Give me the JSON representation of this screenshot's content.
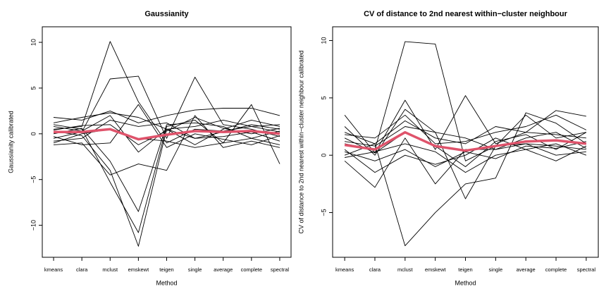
{
  "chart_data": [
    {
      "type": "line",
      "title": "Gaussianity",
      "xlabel": "Method",
      "ylabel": "Gaussianity calibrated",
      "categories": [
        "kmeans",
        "clara",
        "mclust",
        "emskewt",
        "teigen",
        "single",
        "average",
        "complete",
        "spectral"
      ],
      "ylim": [
        -13.5,
        11.7
      ],
      "yticks": [
        {
          "value": -10,
          "label": "−10"
        },
        {
          "value": -5,
          "label": "−5"
        },
        0,
        5,
        10
      ],
      "series": [
        {
          "color": "#000000",
          "values": [
            0.5,
            0.8,
            10.1,
            3.5,
            -1.0,
            0.5,
            0.3,
            0.8,
            0.2
          ]
        },
        {
          "color": "#000000",
          "values": [
            -0.5,
            0.2,
            6.0,
            6.3,
            -0.5,
            6.2,
            1.0,
            0.5,
            -0.3
          ]
        },
        {
          "color": "#000000",
          "values": [
            0.3,
            -0.2,
            -4.0,
            -12.3,
            0.5,
            -0.5,
            0.2,
            1.0,
            0.5
          ]
        },
        {
          "color": "#000000",
          "values": [
            1.0,
            0.5,
            -5.3,
            -10.8,
            0.8,
            1.5,
            -1.0,
            3.2,
            -3.3
          ]
        },
        {
          "color": "#000000",
          "values": [
            0.0,
            0.6,
            -3.0,
            -8.5,
            1.0,
            1.2,
            0.8,
            -0.5,
            0.3
          ]
        },
        {
          "color": "#000000",
          "values": [
            1.8,
            1.5,
            2.5,
            1.2,
            2.0,
            2.6,
            2.8,
            2.8,
            2.0
          ]
        },
        {
          "color": "#000000",
          "values": [
            -1.2,
            -1.0,
            -4.5,
            -3.3,
            -4.0,
            2.0,
            -1.5,
            -0.8,
            -1.5
          ]
        },
        {
          "color": "#000000",
          "values": [
            0.8,
            0.3,
            2.0,
            -2.0,
            0.5,
            -1.2,
            0.5,
            1.5,
            0.8
          ]
        },
        {
          "color": "#000000",
          "values": [
            -0.8,
            -0.5,
            1.5,
            0.8,
            1.2,
            -0.5,
            -0.3,
            0.2,
            -0.8
          ]
        },
        {
          "color": "#000000",
          "values": [
            1.2,
            1.8,
            2.3,
            1.8,
            0.5,
            0.8,
            1.5,
            0.8,
            1.0
          ]
        },
        {
          "color": "#000000",
          "values": [
            -0.3,
            -1.2,
            -1.0,
            3.2,
            -1.5,
            0.0,
            -0.6,
            -1.2,
            -0.2
          ]
        },
        {
          "color": "#000000",
          "values": [
            0.4,
            0.9,
            1.0,
            -1.2,
            0.3,
            1.8,
            0.6,
            0.0,
            0.6
          ]
        },
        {
          "color": "#000000",
          "values": [
            -1.0,
            0.0,
            0.5,
            -0.5,
            -0.8,
            -1.5,
            -1.0,
            -0.5,
            -1.2
          ]
        },
        {
          "color": "#df536b",
          "linewidth": 3.5,
          "values": [
            0.2,
            0.2,
            0.5,
            -0.6,
            -0.1,
            0.3,
            0.2,
            0.3,
            0.0
          ]
        }
      ]
    },
    {
      "type": "line",
      "title": "CV of distance to 2nd nearest within−cluster neighbour",
      "xlabel": "Method",
      "ylabel": "CV of distance to 2nd nearest within−cluster neighbour calibrated",
      "categories": [
        "kmeans",
        "clara",
        "mclust",
        "emskewt",
        "teigen",
        "single",
        "average",
        "complete",
        "spectral"
      ],
      "ylim": [
        -8.9,
        11.2
      ],
      "yticks": [
        {
          "value": -5,
          "label": "−5"
        },
        0,
        5,
        10
      ],
      "series": [
        {
          "color": "#000000",
          "values": [
            1.0,
            0.5,
            9.9,
            9.7,
            -0.5,
            0.8,
            1.0,
            0.8,
            0.5
          ]
        },
        {
          "color": "#000000",
          "values": [
            0.0,
            1.0,
            -7.9,
            -5.0,
            -2.5,
            -2.0,
            3.7,
            2.8,
            1.0
          ]
        },
        {
          "color": "#000000",
          "values": [
            3.5,
            0.2,
            4.8,
            0.5,
            5.2,
            1.0,
            2.0,
            3.9,
            3.4
          ]
        },
        {
          "color": "#000000",
          "values": [
            -0.5,
            -2.8,
            1.5,
            -2.5,
            0.5,
            0.5,
            1.0,
            0.0,
            0.3
          ]
        },
        {
          "color": "#000000",
          "values": [
            2.5,
            0.0,
            4.0,
            2.0,
            -3.8,
            0.8,
            3.5,
            1.5,
            2.0
          ]
        },
        {
          "color": "#000000",
          "values": [
            1.8,
            1.5,
            3.5,
            1.0,
            1.2,
            2.0,
            2.5,
            3.5,
            2.2
          ]
        },
        {
          "color": "#000000",
          "values": [
            0.5,
            -1.5,
            0.0,
            -0.8,
            0.0,
            1.5,
            0.5,
            -0.5,
            0.8
          ]
        },
        {
          "color": "#000000",
          "values": [
            1.2,
            0.8,
            2.5,
            2.0,
            1.5,
            0.5,
            1.5,
            2.0,
            0.6
          ]
        },
        {
          "color": "#000000",
          "values": [
            -0.2,
            0.3,
            1.0,
            0.3,
            -1.5,
            0.0,
            0.5,
            1.0,
            0.0
          ]
        },
        {
          "color": "#000000",
          "values": [
            2.0,
            1.0,
            3.0,
            1.5,
            1.0,
            2.5,
            2.0,
            1.8,
            1.5
          ]
        },
        {
          "color": "#000000",
          "values": [
            0.3,
            -0.5,
            0.5,
            -1.0,
            0.3,
            -0.3,
            0.8,
            0.6,
            1.2
          ]
        },
        {
          "color": "#000000",
          "values": [
            1.5,
            0.2,
            2.0,
            0.8,
            -1.0,
            1.2,
            1.8,
            0.5,
            2.0
          ]
        },
        {
          "color": "#df536b",
          "linewidth": 3.5,
          "values": [
            0.9,
            0.5,
            2.0,
            0.8,
            0.4,
            0.8,
            1.2,
            1.3,
            1.0
          ]
        }
      ]
    }
  ]
}
